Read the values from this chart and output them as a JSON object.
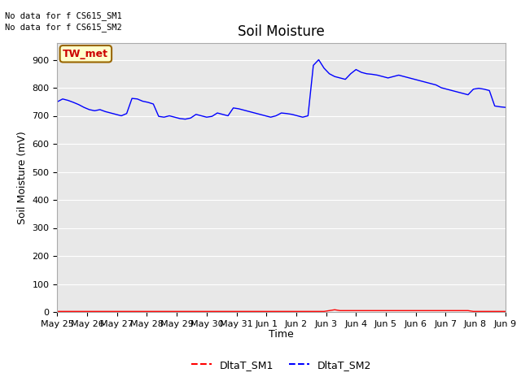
{
  "title": "Soil Moisture",
  "ylabel": "Soil Moisture (mV)",
  "xlabel": "Time",
  "background_color": "#e8e8e8",
  "fig_bg_color": "#ffffff",
  "ylim": [
    0,
    960
  ],
  "yticks": [
    0,
    100,
    200,
    300,
    400,
    500,
    600,
    700,
    800,
    900
  ],
  "x_labels": [
    "May 25",
    "May 26",
    "May 27",
    "May 28",
    "May 29",
    "May 30",
    "May 31",
    "Jun 1",
    "Jun 2",
    "Jun 3",
    "Jun 4",
    "Jun 5",
    "Jun 6",
    "Jun 7",
    "Jun 8",
    "Jun 9"
  ],
  "no_data_text1": "No data for f CS615_SM1",
  "no_data_text2": "No data for f CS615_SM2",
  "tw_met_label": "TW_met",
  "sm1_color": "#ff0000",
  "sm2_color": "#0000ff",
  "sm1_label": "DltaT_SM1",
  "sm2_label": "DltaT_SM2",
  "sm2_data": [
    750,
    760,
    755,
    748,
    740,
    730,
    722,
    718,
    722,
    715,
    710,
    705,
    700,
    708,
    762,
    760,
    752,
    748,
    742,
    698,
    695,
    700,
    695,
    690,
    688,
    692,
    705,
    700,
    695,
    698,
    710,
    705,
    700,
    728,
    725,
    720,
    715,
    710,
    705,
    700,
    695,
    700,
    710,
    708,
    705,
    700,
    695,
    700,
    880,
    900,
    870,
    850,
    840,
    835,
    830,
    850,
    865,
    855,
    850,
    848,
    845,
    840,
    835,
    840,
    845,
    840,
    835,
    830,
    825,
    820,
    815,
    810,
    800,
    795,
    790,
    785,
    780,
    775,
    795,
    798,
    795,
    790,
    735,
    732,
    730
  ],
  "sm1_data": [
    2,
    2,
    2,
    2,
    2,
    2,
    2,
    2,
    2,
    2,
    2,
    2,
    2,
    2,
    2,
    2,
    2,
    2,
    2,
    2,
    2,
    2,
    2,
    2,
    2,
    2,
    2,
    2,
    2,
    2,
    2,
    2,
    2,
    2,
    2,
    2,
    2,
    2,
    2,
    2,
    2,
    2,
    2,
    2,
    2,
    2,
    2,
    2,
    2,
    2,
    2,
    5,
    8,
    5,
    5,
    5,
    5,
    5,
    5,
    5,
    5,
    5,
    5,
    5,
    5,
    5,
    5,
    5,
    5,
    5,
    5,
    5,
    5,
    5,
    5,
    5,
    5,
    5,
    2,
    2,
    2,
    2,
    2,
    2,
    2
  ],
  "title_fontsize": 12,
  "axis_label_fontsize": 9,
  "tick_fontsize": 8
}
